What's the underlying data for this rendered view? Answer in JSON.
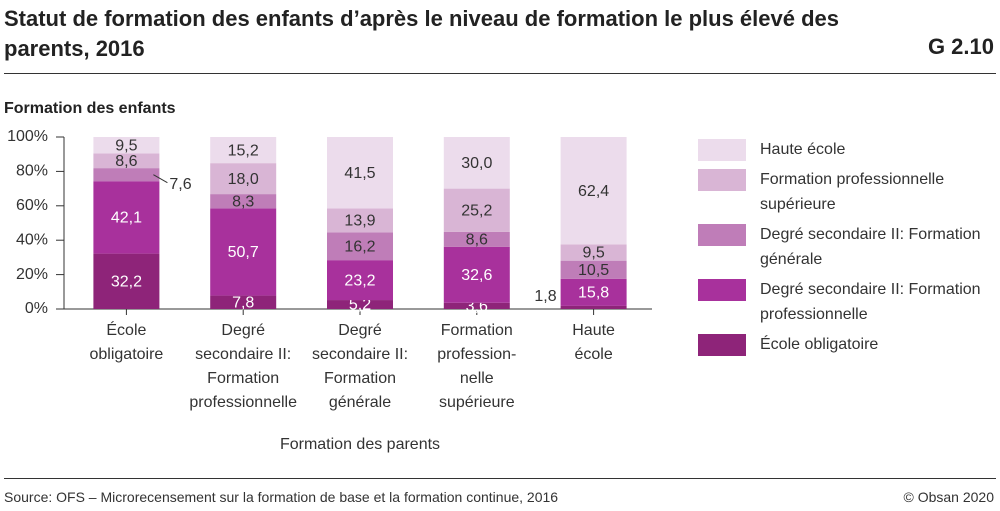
{
  "chart_data": {
    "type": "stacked_bar",
    "title": "Statut de formation des enfants d’après le niveau de formation le plus élevé des parents, 2016",
    "chart_id": "G 2.10",
    "y_label": "Formation des enfants",
    "x_label": "Formation des parents",
    "source": "Source: OFS – Microrecensement sur la formation de base et la formation continue, 2016",
    "copyright": "© Obsan 2020",
    "categories": [
      [
        "École",
        "obligatoire"
      ],
      [
        "Degré",
        "secondaire II:",
        "Formation",
        "professionnelle"
      ],
      [
        "Degré",
        "secondaire II:",
        "Formation",
        "générale"
      ],
      [
        "Formation",
        "profession-",
        "nelle",
        "supérieure"
      ],
      [
        "Haute",
        "école"
      ]
    ],
    "series": [
      {
        "name": "École obligatoire",
        "color": "#8e2479",
        "values": [
          32.2,
          7.8,
          5.2,
          3.6,
          1.8
        ],
        "value_labels": [
          "32,2",
          "7,8",
          "5,2",
          "3,6",
          "1,8"
        ]
      },
      {
        "name": "Degré secondaire II: Formation professionnelle",
        "color": "#a8319c",
        "values": [
          42.1,
          50.7,
          23.2,
          32.6,
          15.8
        ],
        "value_labels": [
          "42,1",
          "50,7",
          "23,2",
          "32,6",
          "15,8"
        ]
      },
      {
        "name": "Degré secondaire II: Formation générale",
        "color": "#bf7db8",
        "values": [
          7.6,
          8.3,
          16.2,
          8.6,
          10.5
        ],
        "value_labels": [
          "7,6",
          "8,3",
          "16,2",
          "8,6",
          "10,5"
        ]
      },
      {
        "name": "Formation professionnelle supérieure",
        "color": "#d9b5d5",
        "values": [
          8.6,
          18.0,
          13.9,
          25.2,
          9.5
        ],
        "value_labels": [
          "8,6",
          "18,0",
          "13,9",
          "25,2",
          "9,5"
        ]
      },
      {
        "name": "Haute école",
        "color": "#ecdcec",
        "values": [
          9.5,
          15.2,
          41.5,
          30.0,
          62.4
        ],
        "value_labels": [
          "9,5",
          "15,2",
          "41,5",
          "30,0",
          "62,4"
        ]
      }
    ],
    "ylim": [
      0,
      100
    ],
    "yticks": [
      {
        "value": 0,
        "label": "0%"
      },
      {
        "value": 20,
        "label": "20%"
      },
      {
        "value": 40,
        "label": "40%"
      },
      {
        "value": 60,
        "label": "60%"
      },
      {
        "value": 80,
        "label": "80%"
      },
      {
        "value": 100,
        "label": "100%"
      }
    ],
    "legend": "right"
  }
}
